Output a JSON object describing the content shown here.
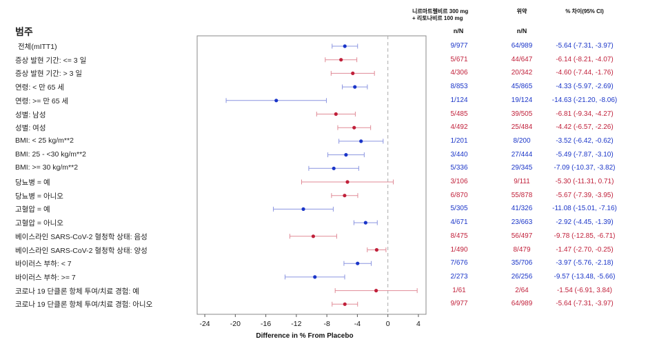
{
  "header": {
    "category": "범주",
    "col1_line1": "니르마트렐비르 300 mg",
    "col1_line2": "+ 리토나비르 100 mg",
    "col2": "위약",
    "col3": "% 차이(95% CI)",
    "col1_nn": "n/N",
    "col2_nn": "n/N"
  },
  "colors": {
    "blue": "#1a35c8",
    "red": "#c0203a",
    "ci_blue": "#8a94e0",
    "ci_red": "#e08a96"
  },
  "chart_data": {
    "type": "forest",
    "xlabel": "Difference in % From Placebo",
    "xlim": [
      -25,
      5
    ],
    "xticks": [
      -24,
      -20,
      -16,
      -12,
      -8,
      -4,
      0,
      4
    ],
    "reference_line": 0,
    "rows": [
      {
        "label": "전체(mITT1)",
        "n1": "9/977",
        "n2": "64/989",
        "diff": "-5.64 (-7.31, -3.97)",
        "est": -5.64,
        "lo": -7.31,
        "hi": -3.97,
        "color": "blue"
      },
      {
        "label": "증상 발현 기간: <= 3 일",
        "n1": "5/671",
        "n2": "44/647",
        "diff": "-6.14 (-8.21, -4.07)",
        "est": -6.14,
        "lo": -8.21,
        "hi": -4.07,
        "color": "red"
      },
      {
        "label": "증상 발현 기간: > 3 일",
        "n1": "4/306",
        "n2": "20/342",
        "diff": "-4.60 (-7.44, -1.76)",
        "est": -4.6,
        "lo": -7.44,
        "hi": -1.76,
        "color": "red"
      },
      {
        "label": "연령: < 만 65 세",
        "n1": "8/853",
        "n2": "45/865",
        "diff": "-4.33 (-5.97, -2.69)",
        "est": -4.33,
        "lo": -5.97,
        "hi": -2.69,
        "color": "blue"
      },
      {
        "label": "연령: >= 만 65 세",
        "n1": "1/124",
        "n2": "19/124",
        "diff": "-14.63 (-21.20, -8.06)",
        "est": -14.63,
        "lo": -21.2,
        "hi": -8.06,
        "color": "blue"
      },
      {
        "label": "성별: 남성",
        "n1": "5/485",
        "n2": "39/505",
        "diff": "-6.81 (-9.34, -4.27)",
        "est": -6.81,
        "lo": -9.34,
        "hi": -4.27,
        "color": "red"
      },
      {
        "label": "성별: 여성",
        "n1": "4/492",
        "n2": "25/484",
        "diff": "-4.42 (-6.57, -2.26)",
        "est": -4.42,
        "lo": -6.57,
        "hi": -2.26,
        "color": "red"
      },
      {
        "label": "BMI: < 25 kg/m**2",
        "n1": "1/201",
        "n2": "8/200",
        "diff": "-3.52 (-6.42, -0.62)",
        "est": -3.52,
        "lo": -6.42,
        "hi": -0.62,
        "color": "blue"
      },
      {
        "label": "BMI: 25 - <30 kg/m**2",
        "n1": "3/440",
        "n2": "27/444",
        "diff": "-5.49 (-7.87, -3.10)",
        "est": -5.49,
        "lo": -7.87,
        "hi": -3.1,
        "color": "blue"
      },
      {
        "label": "BMI: >= 30 kg/m**2",
        "n1": "5/336",
        "n2": "29/345",
        "diff": "-7.09 (-10.37, -3.82)",
        "est": -7.09,
        "lo": -10.37,
        "hi": -3.82,
        "color": "blue"
      },
      {
        "label": "당뇨병 = 예",
        "n1": "3/106",
        "n2": "9/111",
        "diff": "-5.30 (-11.31, 0.71)",
        "est": -5.3,
        "lo": -11.31,
        "hi": 0.71,
        "color": "red"
      },
      {
        "label": "당뇨병 = 아니오",
        "n1": "6/870",
        "n2": "55/878",
        "diff": "-5.67 (-7.39, -3.95)",
        "est": -5.67,
        "lo": -7.39,
        "hi": -3.95,
        "color": "red"
      },
      {
        "label": "고혈압 = 예",
        "n1": "5/305",
        "n2": "41/326",
        "diff": "-11.08 (-15.01, -7.16)",
        "est": -11.08,
        "lo": -15.01,
        "hi": -7.16,
        "color": "blue"
      },
      {
        "label": "고혈압 = 아니오",
        "n1": "4/671",
        "n2": "23/663",
        "diff": "-2.92 (-4.45, -1.39)",
        "est": -2.92,
        "lo": -4.45,
        "hi": -1.39,
        "color": "blue"
      },
      {
        "label": "베이스라인 SARS-CoV-2 혈청학 상태: 음성",
        "n1": "8/475",
        "n2": "56/497",
        "diff": "-9.78 (-12.85, -6.71)",
        "est": -9.78,
        "lo": -12.85,
        "hi": -6.71,
        "color": "red"
      },
      {
        "label": "베이스라인 SARS-CoV-2 혈청학 상태: 양성",
        "n1": "1/490",
        "n2": "8/479",
        "diff": "-1.47 (-2.70, -0.25)",
        "est": -1.47,
        "lo": -2.7,
        "hi": -0.25,
        "color": "red"
      },
      {
        "label": "바이러스 부하: < 7",
        "n1": "7/676",
        "n2": "35/706",
        "diff": "-3.97 (-5.76, -2.18)",
        "est": -3.97,
        "lo": -5.76,
        "hi": -2.18,
        "color": "blue"
      },
      {
        "label": "바이러스 부하: >= 7",
        "n1": "2/273",
        "n2": "26/256",
        "diff": "-9.57 (-13.48, -5.66)",
        "est": -9.57,
        "lo": -13.48,
        "hi": -5.66,
        "color": "blue"
      },
      {
        "label": "코로나 19 단클론 항체 투여/치료 경험: 예",
        "n1": "1/61",
        "n2": "2/64",
        "diff": "-1.54 (-6.91, 3.84)",
        "est": -1.54,
        "lo": -6.91,
        "hi": 3.84,
        "color": "red"
      },
      {
        "label": "코로나 19 단클론 항체 투여/치료 경험: 아니오",
        "n1": "9/977",
        "n2": "64/989",
        "diff": "-5.64 (-7.31, -3.97)",
        "est": -5.64,
        "lo": -7.31,
        "hi": -3.97,
        "color": "red"
      }
    ]
  }
}
